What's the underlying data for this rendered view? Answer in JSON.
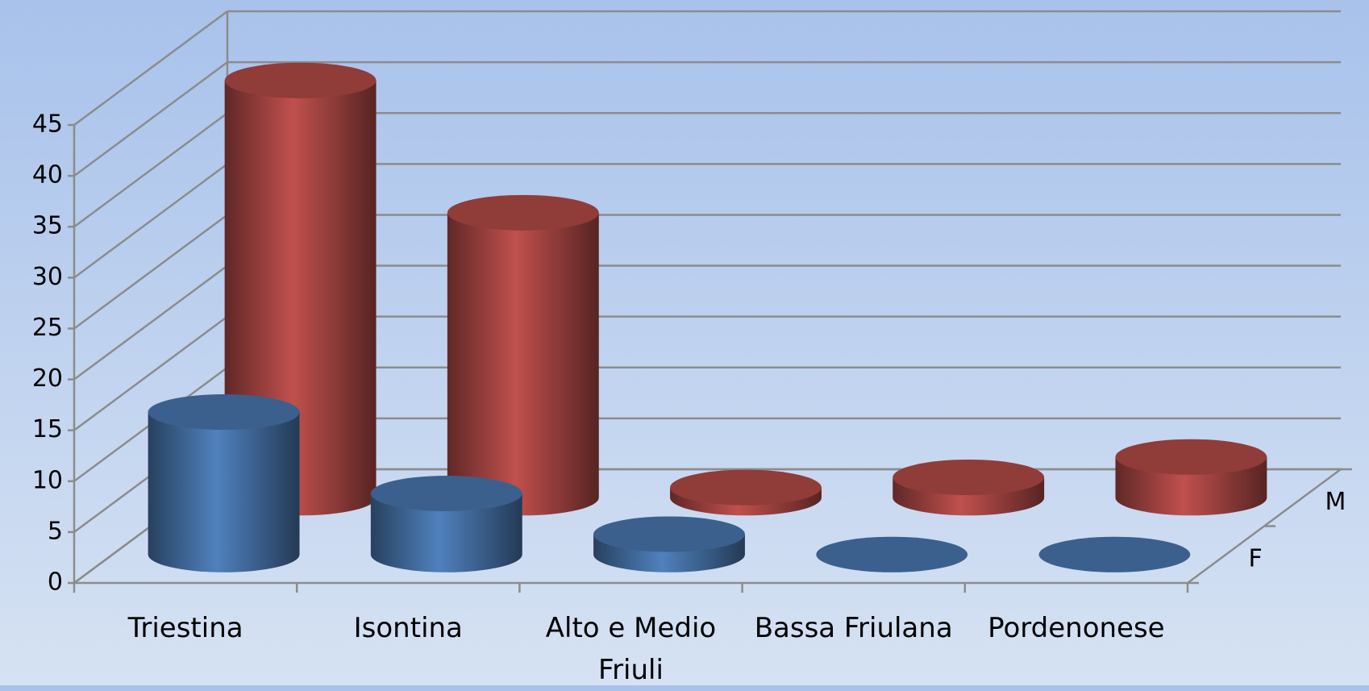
{
  "chart_data": {
    "type": "cylinder3d",
    "categories": [
      "Triestina",
      "Isontina",
      "Alto e Medio Friuli",
      "Bassa Friulana",
      "Pordenonese"
    ],
    "series": [
      {
        "name": "F",
        "color": "#4f81bd",
        "values": [
          14,
          6,
          2,
          0,
          0
        ]
      },
      {
        "name": "M",
        "color": "#c0504d",
        "values": [
          41,
          28,
          1,
          2,
          4
        ]
      }
    ],
    "ylim": [
      0,
      45
    ],
    "yticks": [
      0,
      5,
      10,
      15,
      20,
      25,
      30,
      35,
      40,
      45
    ],
    "grid": true
  }
}
